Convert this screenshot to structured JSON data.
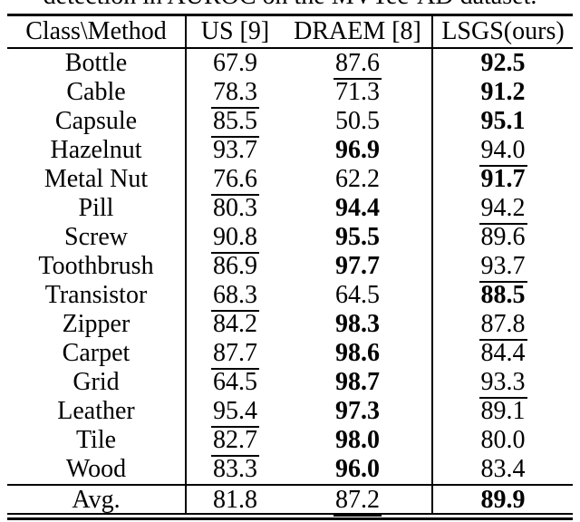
{
  "caption": {
    "text": "detection in AUROC on the MVTec-AD dataset."
  },
  "colors": {
    "text": "#000000",
    "background": "#ffffff"
  },
  "table": {
    "columns": [
      "Class\\Method",
      "US [9]",
      "DRAEM [8]",
      "LSGS(ours)"
    ],
    "rows": [
      {
        "class": "Bottle",
        "cells": [
          {
            "v": "67.9",
            "s": "plain"
          },
          {
            "v": "87.6",
            "s": "underline"
          },
          {
            "v": "92.5",
            "s": "bold"
          }
        ]
      },
      {
        "class": "Cable",
        "cells": [
          {
            "v": "78.3",
            "s": "underline"
          },
          {
            "v": "71.3",
            "s": "plain"
          },
          {
            "v": "91.2",
            "s": "bold"
          }
        ]
      },
      {
        "class": "Capsule",
        "cells": [
          {
            "v": "85.5",
            "s": "underline"
          },
          {
            "v": "50.5",
            "s": "plain"
          },
          {
            "v": "95.1",
            "s": "bold"
          }
        ]
      },
      {
        "class": "Hazelnut",
        "cells": [
          {
            "v": "93.7",
            "s": "plain"
          },
          {
            "v": "96.9",
            "s": "bold"
          },
          {
            "v": "94.0",
            "s": "underline"
          }
        ]
      },
      {
        "class": "Metal Nut",
        "cells": [
          {
            "v": "76.6",
            "s": "underline"
          },
          {
            "v": "62.2",
            "s": "plain"
          },
          {
            "v": "91.7",
            "s": "bold"
          }
        ]
      },
      {
        "class": "Pill",
        "cells": [
          {
            "v": "80.3",
            "s": "plain"
          },
          {
            "v": "94.4",
            "s": "bold"
          },
          {
            "v": "94.2",
            "s": "underline"
          }
        ]
      },
      {
        "class": "Screw",
        "cells": [
          {
            "v": "90.8",
            "s": "underline"
          },
          {
            "v": "95.5",
            "s": "bold"
          },
          {
            "v": "89.6",
            "s": "plain"
          }
        ]
      },
      {
        "class": "Toothbrush",
        "cells": [
          {
            "v": "86.9",
            "s": "plain"
          },
          {
            "v": "97.7",
            "s": "bold"
          },
          {
            "v": "93.7",
            "s": "underline"
          }
        ]
      },
      {
        "class": "Transistor",
        "cells": [
          {
            "v": "68.3",
            "s": "underline"
          },
          {
            "v": "64.5",
            "s": "plain"
          },
          {
            "v": "88.5",
            "s": "bold"
          }
        ]
      },
      {
        "class": "Zipper",
        "cells": [
          {
            "v": "84.2",
            "s": "plain"
          },
          {
            "v": "98.3",
            "s": "bold"
          },
          {
            "v": "87.8",
            "s": "underline"
          }
        ]
      },
      {
        "class": "Carpet",
        "cells": [
          {
            "v": "87.7",
            "s": "underline"
          },
          {
            "v": "98.6",
            "s": "bold"
          },
          {
            "v": "84.4",
            "s": "plain"
          }
        ]
      },
      {
        "class": "Grid",
        "cells": [
          {
            "v": "64.5",
            "s": "plain"
          },
          {
            "v": "98.7",
            "s": "bold"
          },
          {
            "v": "93.3",
            "s": "underline"
          }
        ]
      },
      {
        "class": "Leather",
        "cells": [
          {
            "v": "95.4",
            "s": "underline"
          },
          {
            "v": "97.3",
            "s": "bold"
          },
          {
            "v": "89.1",
            "s": "plain"
          }
        ]
      },
      {
        "class": "Tile",
        "cells": [
          {
            "v": "82.7",
            "s": "underline"
          },
          {
            "v": "98.0",
            "s": "bold"
          },
          {
            "v": "80.0",
            "s": "plain"
          }
        ]
      },
      {
        "class": "Wood",
        "cells": [
          {
            "v": "83.3",
            "s": "plain"
          },
          {
            "v": "96.0",
            "s": "bold"
          },
          {
            "v": "83.4",
            "s": "underline"
          }
        ]
      }
    ],
    "avg": {
      "class": "Avg.",
      "cells": [
        {
          "v": "81.8",
          "s": "plain"
        },
        {
          "v": "87.2",
          "s": "underline"
        },
        {
          "v": "89.9",
          "s": "bold"
        }
      ]
    }
  }
}
